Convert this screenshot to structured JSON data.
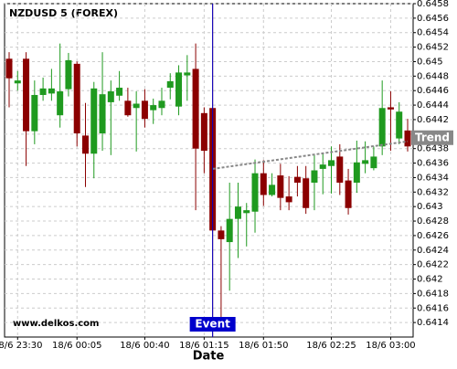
{
  "chart_data": {
    "type": "candlestick",
    "title": "NZDUSD 5 (FOREX)",
    "x_label": "Date",
    "watermark": "www.delkos.com",
    "categories": [
      null,
      "18/6 23:30",
      null,
      null,
      null,
      null,
      null,
      null,
      "18/6 00:05",
      null,
      null,
      null,
      null,
      null,
      null,
      null,
      "18/6 00:40",
      null,
      null,
      null,
      null,
      null,
      null,
      "18/6 01:15",
      null,
      null,
      null,
      null,
      null,
      null,
      "18/6 01:50",
      null,
      null,
      null,
      null,
      null,
      null,
      null,
      "18/6 02:25",
      null,
      null,
      null,
      null,
      null,
      null,
      "18/6 03:00",
      null,
      null
    ],
    "open": [
      0.64504,
      0.6447,
      0.64504,
      0.64404,
      0.64454,
      0.64456,
      0.64426,
      0.64462,
      0.64497,
      0.64398,
      0.64373,
      0.64401,
      0.64444,
      0.64453,
      0.64446,
      0.64436,
      0.64446,
      0.64433,
      0.64436,
      0.64464,
      0.64438,
      0.64481,
      0.6449,
      0.64429,
      0.64436,
      0.64267,
      0.64251,
      0.64283,
      0.64291,
      0.64293,
      0.64346,
      0.64316,
      0.64343,
      0.64314,
      0.64341,
      0.64339,
      0.64333,
      0.64352,
      0.64356,
      0.64369,
      0.64336,
      0.64333,
      0.64359,
      0.64353,
      0.64383,
      0.64437,
      0.64394,
      0.64405
    ],
    "high": [
      0.64513,
      0.64487,
      0.64513,
      0.64474,
      0.64478,
      0.6449,
      0.64525,
      0.64512,
      0.645,
      0.64443,
      0.64472,
      0.64513,
      0.64474,
      0.64487,
      0.64464,
      0.64459,
      0.64462,
      0.64449,
      0.64464,
      0.64484,
      0.64495,
      0.64509,
      0.64525,
      0.64437,
      0.6458,
      0.64273,
      0.64333,
      0.64333,
      0.64305,
      0.64365,
      0.64364,
      0.64346,
      0.64359,
      0.64342,
      0.64356,
      0.64356,
      0.64371,
      0.64373,
      0.64383,
      0.64386,
      0.64352,
      0.64391,
      0.6439,
      0.64383,
      0.64474,
      0.64459,
      0.64444,
      0.64421
    ],
    "low": [
      0.64437,
      0.6446,
      0.64356,
      0.64386,
      0.64446,
      0.64446,
      0.64409,
      0.64452,
      0.64383,
      0.64327,
      0.64339,
      0.64377,
      0.64371,
      0.64446,
      0.64424,
      0.64376,
      0.64409,
      0.64414,
      0.64426,
      0.64448,
      0.64426,
      0.64446,
      0.64295,
      0.64346,
      0.6412,
      0.64145,
      0.64184,
      0.64229,
      0.64245,
      0.64264,
      0.64301,
      0.64314,
      0.64295,
      0.64295,
      0.64314,
      0.6429,
      0.64295,
      0.64317,
      0.64318,
      0.64316,
      0.64289,
      0.64319,
      0.64346,
      0.6435,
      0.64371,
      0.64377,
      0.64386,
      0.64376
    ],
    "close": [
      0.64477,
      0.64474,
      0.64404,
      0.64454,
      0.64463,
      0.64463,
      0.64459,
      0.64502,
      0.64401,
      0.64373,
      0.64463,
      0.64455,
      0.64459,
      0.64464,
      0.64426,
      0.64442,
      0.64421,
      0.6444,
      0.64446,
      0.64473,
      0.64485,
      0.64485,
      0.6438,
      0.64377,
      0.64267,
      0.64255,
      0.64283,
      0.643,
      0.64295,
      0.64346,
      0.64316,
      0.6433,
      0.64312,
      0.64306,
      0.64333,
      0.64298,
      0.6435,
      0.64358,
      0.64364,
      0.64333,
      0.64298,
      0.64361,
      0.64364,
      0.64369,
      0.64436,
      0.64434,
      0.64431,
      0.64383
    ],
    "up_color": "#1f9a1f",
    "down_color": "#8b0000",
    "ylim": [
      0.6412,
      0.6458
    ],
    "yticks": [
      0.6414,
      0.6416,
      0.6418,
      0.642,
      0.6422,
      0.6424,
      0.6426,
      0.6428,
      0.643,
      0.6432,
      0.6434,
      0.6436,
      0.6438,
      0.644,
      0.6442,
      0.6444,
      0.6446,
      0.6448,
      0.645,
      0.6452,
      0.6454,
      0.6456,
      0.6458
    ],
    "grid": true,
    "event": {
      "label": "Event",
      "index": 24,
      "color": "#0000cc"
    },
    "trend_line": {
      "label": "Trend",
      "start": [
        24,
        0.64352
      ],
      "end": [
        47,
        0.6439
      ],
      "color": "#888888"
    }
  }
}
